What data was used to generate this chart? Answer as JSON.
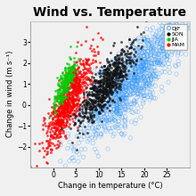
{
  "title": "Wind vs. Temperature",
  "xlabel": "Change in temperature (°C)",
  "ylabel": "Change in wind (m s⁻¹)",
  "xlim": [
    -5,
    30
  ],
  "ylim": [
    -3,
    4
  ],
  "xticks": [
    0,
    5,
    10,
    15,
    20,
    25
  ],
  "yticks": [
    -2,
    -1,
    0,
    1,
    2,
    3
  ],
  "seasons": [
    {
      "name": "DJF",
      "color": "#3399FF",
      "filled": false,
      "x_mean": 17.0,
      "y_mean": 1.1,
      "x_std": 6.0,
      "y_std": 1.5,
      "corr": 0.82,
      "n": 1200,
      "zorder": 1
    },
    {
      "name": "SON",
      "color": "#111111",
      "filled": true,
      "x_mean": 11.5,
      "y_mean": 0.9,
      "x_std": 3.2,
      "y_std": 0.95,
      "corr": 0.85,
      "n": 700,
      "zorder": 3
    },
    {
      "name": "JJA",
      "color": "#00CC00",
      "filled": true,
      "x_mean": 2.5,
      "y_mean": 1.0,
      "x_std": 1.2,
      "y_std": 0.55,
      "corr": 0.8,
      "n": 250,
      "zorder": 4
    },
    {
      "name": "MAM",
      "color": "#FF0000",
      "filled": true,
      "x_mean": 3.5,
      "y_mean": 0.2,
      "x_std": 2.5,
      "y_std": 1.1,
      "corr": 0.82,
      "n": 800,
      "zorder": 2
    }
  ],
  "seed": 42,
  "background_color": "#f0f0f0",
  "markersize": 2.0,
  "alpha_filled": 0.75,
  "alpha_open": 0.5,
  "title_fontsize": 10,
  "label_fontsize": 6,
  "tick_fontsize": 5.5
}
